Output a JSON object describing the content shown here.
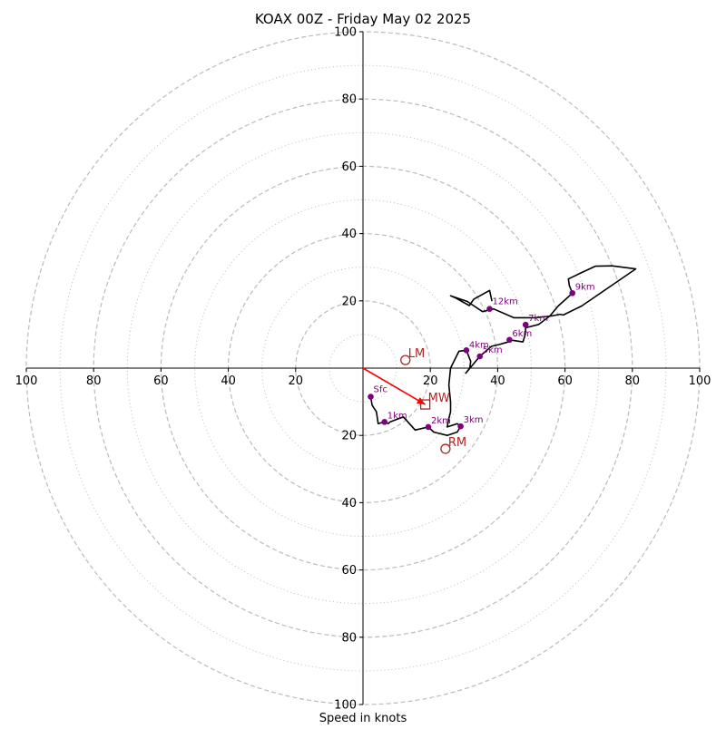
{
  "chart_data": {
    "type": "hodograph",
    "title": "KOAX 00Z - Friday May 02 2025",
    "xlabel": "Speed in knots",
    "ylabel": "",
    "xlim": [
      -100,
      100
    ],
    "ylim": [
      -100,
      100
    ],
    "x_tick_labels": [
      "100",
      "80",
      "60",
      "40",
      "20",
      "20",
      "40",
      "60",
      "80",
      "100"
    ],
    "y_tick_labels": [
      "100",
      "80",
      "60",
      "40",
      "20",
      "20",
      "40",
      "60",
      "80",
      "100"
    ],
    "rings_dashed": [
      20,
      40,
      60,
      80,
      100
    ],
    "rings_dotted": [
      10,
      30,
      50,
      70,
      90
    ],
    "colors": {
      "hodograph_line": "#000000",
      "height_marker": "#800080",
      "storm_motion": "#b22222",
      "mean_wind_vector": "#ff0000",
      "grid": "#bbbbbb",
      "axis": "#000000"
    },
    "hodograph_trace": [
      [
        2.3,
        -8.5
      ],
      [
        2.7,
        -11
      ],
      [
        4,
        -13
      ],
      [
        4.5,
        -16.5
      ],
      [
        6.4,
        -16
      ],
      [
        7.5,
        -16.5
      ],
      [
        8,
        -16
      ],
      [
        12,
        -14.5
      ],
      [
        15.5,
        -18.4
      ],
      [
        19.4,
        -17.5
      ],
      [
        21,
        -19
      ],
      [
        25,
        -20
      ],
      [
        28,
        -19
      ],
      [
        29,
        -17.3
      ],
      [
        28,
        -16.5
      ],
      [
        25,
        -17.5
      ],
      [
        25.5,
        -15
      ],
      [
        26,
        -13
      ],
      [
        26,
        -10
      ],
      [
        25.5,
        -5
      ],
      [
        26,
        0
      ],
      [
        28.5,
        5
      ],
      [
        30.7,
        5.3
      ],
      [
        32,
        2
      ],
      [
        31.7,
        0
      ],
      [
        30.5,
        -1.5
      ],
      [
        34.7,
        3.5
      ],
      [
        38.2,
        6.5
      ],
      [
        40.4,
        7
      ],
      [
        42.1,
        7.5
      ],
      [
        43.6,
        7.9
      ],
      [
        43.5,
        8.4
      ],
      [
        47.5,
        7.8
      ],
      [
        48.2,
        10
      ],
      [
        48.3,
        12
      ],
      [
        52.2,
        13
      ],
      [
        55.5,
        15.5
      ],
      [
        58,
        18.5
      ],
      [
        62.2,
        22.3
      ],
      [
        61.3,
        24.5
      ],
      [
        61,
        26.5
      ],
      [
        64.5,
        28.2
      ],
      [
        69,
        30.3
      ],
      [
        74,
        30.4
      ],
      [
        81,
        29.5
      ],
      [
        65,
        18.5
      ],
      [
        59.5,
        15.8
      ],
      [
        58.5,
        16
      ],
      [
        56,
        15.5
      ],
      [
        51,
        15
      ],
      [
        44.8,
        15
      ],
      [
        38.8,
        17.6
      ],
      [
        35.5,
        16.8
      ],
      [
        31,
        19.8
      ],
      [
        26,
        21.5
      ],
      [
        27.6,
        20.8
      ],
      [
        31.6,
        18.6
      ],
      [
        32.9,
        20.5
      ],
      [
        37.6,
        23.1
      ],
      [
        38.3,
        19.9
      ]
    ],
    "height_markers": [
      {
        "label": "Sfc",
        "u": 2.3,
        "v": -8.5
      },
      {
        "label": "1km",
        "u": 6.4,
        "v": -16
      },
      {
        "label": "2km",
        "u": 19.4,
        "v": -17.5
      },
      {
        "label": "3km",
        "u": 29,
        "v": -17.3
      },
      {
        "label": "4km",
        "u": 30.7,
        "v": 5.3
      },
      {
        "label": "5km",
        "u": 34.7,
        "v": 3.5
      },
      {
        "label": "6km",
        "u": 43.5,
        "v": 8.4
      },
      {
        "label": "7km",
        "u": 48.3,
        "v": 12.9
      },
      {
        "label": "9km",
        "u": 62.2,
        "v": 22.3
      },
      {
        "label": "12km",
        "u": 37.6,
        "v": 17.6
      }
    ],
    "storm_motion": {
      "LM": {
        "label": "LM",
        "u": 12.6,
        "v": 2.4
      },
      "RM": {
        "label": "RM",
        "u": 24.5,
        "v": -24
      },
      "MW": {
        "label": "MW",
        "u": 18.5,
        "v": -10.8
      }
    },
    "mean_wind_vector": {
      "u": 18.5,
      "v": -10.8
    }
  }
}
